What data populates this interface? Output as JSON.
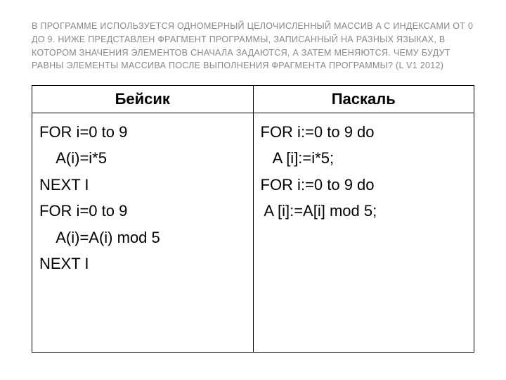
{
  "title": "В ПРОГРАММЕ ИСПОЛЬЗУЕТСЯ ОДНОМЕРНЫЙ ЦЕЛОЧИСЛЕННЫЙ МАССИВ A С ИНДЕКСАМИ ОТ 0 ДО 9. НИЖЕ ПРЕДСТАВЛЕН ФРАГМЕНТ ПРОГРАММЫ, ЗАПИСАННЫЙ НА РАЗНЫХ ЯЗЫКАХ, В КОТОРОМ ЗНАЧЕНИЯ ЭЛЕМЕНТОВ СНАЧАЛА ЗАДАЮТСЯ, А ЗАТЕМ МЕНЯЮТСЯ. ЧЕМУ БУДУТ РАВНЫ ЭЛЕМЕНТЫ МАССИВА ПОСЛЕ ВЫПОЛНЕНИЯ ФРАГМЕНТА ПРОГРАММЫ?  (L V1 2012)",
  "table": {
    "headers": [
      "Бейсик",
      "Паскаль"
    ],
    "col1": {
      "l1": "FOR i=0 to 9",
      "l2": "    A(i)=i*5",
      "l3": "NEXT I",
      "l4": "FOR i=0 to 9",
      "l5": "    A(i)=A(i) mod 5",
      "l6": "NEXT I"
    },
    "col2": {
      "l1": "FOR i:=0 to 9 do",
      "l2": "   A [i]:=i*5;",
      "l3": "FOR i:=0 to 9 do",
      "l4": " A [i]:=A[i] mod 5;"
    }
  },
  "colors": {
    "title_color": "#888888",
    "text_color": "#000000",
    "border_color": "#000000",
    "background": "#ffffff"
  },
  "typography": {
    "title_fontsize": 12.5,
    "table_fontsize": 22,
    "header_fontweight": "bold"
  }
}
